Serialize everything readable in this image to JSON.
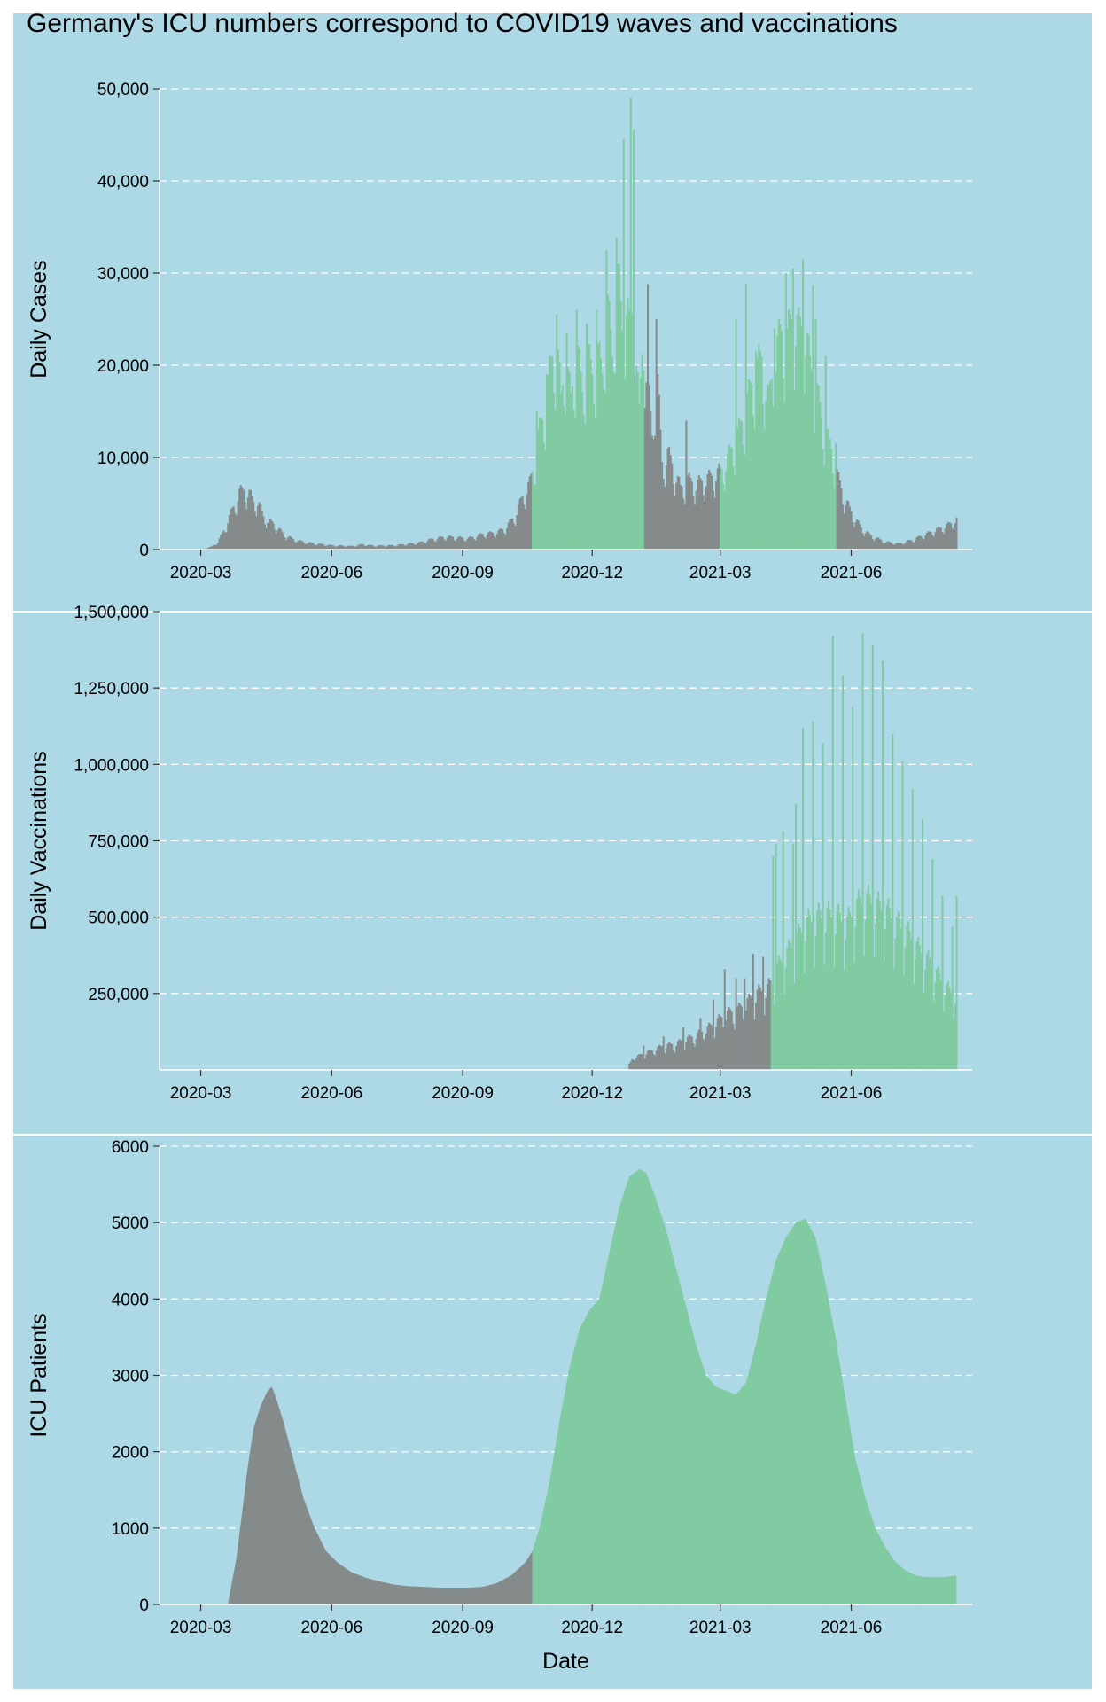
{
  "title": "Germany's ICU numbers correspond to COVID19 waves and vaccinations",
  "colors": {
    "background": "#add8e6",
    "gray_bar": "#858b8b",
    "green_bar": "#80cba1",
    "grid": "#ffffff",
    "axis": "#ffffff"
  },
  "chart_data": [
    {
      "type": "bar",
      "name": "cases",
      "ylabel": "Daily Cases",
      "xlabel": "",
      "xlim": [
        "2020-02-01",
        "2021-08-25"
      ],
      "ylim": [
        0,
        50000
      ],
      "y_ticks": [
        0,
        10000,
        20000,
        30000,
        40000,
        50000
      ],
      "y_tick_labels": [
        "0",
        "10,000",
        "20,000",
        "30,000",
        "40,000",
        "50,000"
      ],
      "x_ticks": [
        "2020-03-01",
        "2020-06-01",
        "2020-09-01",
        "2020-12-01",
        "2021-03-01",
        "2021-06-01"
      ],
      "x_tick_labels": [
        "2020-03",
        "2020-06",
        "2020-09",
        "2020-12",
        "2021-03",
        "2021-06"
      ],
      "grid": "horizontal dashed",
      "highlight_periods": [
        [
          "2020-10-20",
          "2021-01-06"
        ],
        [
          "2021-03-01",
          "2021-05-21"
        ]
      ],
      "points": [
        [
          "2020-02-27",
          10
        ],
        [
          "2020-03-03",
          100
        ],
        [
          "2020-03-08",
          300
        ],
        [
          "2020-03-13",
          900
        ],
        [
          "2020-03-18",
          2500
        ],
        [
          "2020-03-22",
          4200
        ],
        [
          "2020-03-25",
          5300
        ],
        [
          "2020-03-28",
          6600
        ],
        [
          "2020-04-01",
          6900
        ],
        [
          "2020-04-04",
          6500
        ],
        [
          "2020-04-07",
          5500
        ],
        [
          "2020-04-10",
          5600
        ],
        [
          "2020-04-14",
          3800
        ],
        [
          "2020-04-18",
          3300
        ],
        [
          "2020-04-22",
          2900
        ],
        [
          "2020-04-28",
          1800
        ],
        [
          "2020-05-05",
          1200
        ],
        [
          "2020-05-12",
          900
        ],
        [
          "2020-05-20",
          700
        ],
        [
          "2020-06-01",
          500
        ],
        [
          "2020-06-15",
          400
        ],
        [
          "2020-06-22",
          600
        ],
        [
          "2020-07-01",
          450
        ],
        [
          "2020-07-15",
          500
        ],
        [
          "2020-08-01",
          800
        ],
        [
          "2020-08-10",
          1200
        ],
        [
          "2020-08-20",
          1500
        ],
        [
          "2020-08-28",
          1400
        ],
        [
          "2020-09-05",
          1300
        ],
        [
          "2020-09-15",
          1800
        ],
        [
          "2020-09-25",
          2000
        ],
        [
          "2020-10-01",
          2500
        ],
        [
          "2020-10-08",
          4000
        ],
        [
          "2020-10-14",
          6500
        ],
        [
          "2020-10-18",
          7600
        ],
        [
          "2020-10-21",
          9500
        ],
        [
          "2020-10-24",
          13000
        ],
        [
          "2020-10-28",
          15500
        ],
        [
          "2020-10-31",
          19000
        ],
        [
          "2020-11-03",
          22000
        ],
        [
          "2020-11-06",
          24000
        ],
        [
          "2020-11-09",
          17000
        ],
        [
          "2020-11-12",
          22500
        ],
        [
          "2020-11-16",
          17000
        ],
        [
          "2020-11-20",
          23500
        ],
        [
          "2020-11-24",
          18000
        ],
        [
          "2020-11-27",
          22500
        ],
        [
          "2020-12-01",
          20000
        ],
        [
          "2020-12-04",
          23000
        ],
        [
          "2020-12-08",
          20000
        ],
        [
          "2020-12-11",
          29500
        ],
        [
          "2020-12-15",
          22000
        ],
        [
          "2020-12-18",
          33000
        ],
        [
          "2020-12-22",
          25000
        ],
        [
          "2020-12-25",
          30000
        ],
        [
          "2020-12-28",
          22000
        ],
        [
          "2020-12-30",
          32000
        ],
        [
          "2021-01-03",
          15000
        ],
        [
          "2021-01-06",
          26000
        ],
        [
          "2021-01-09",
          19000
        ],
        [
          "2021-01-12",
          13000
        ],
        [
          "2021-01-15",
          22000
        ],
        [
          "2021-01-19",
          10000
        ],
        [
          "2021-01-23",
          11000
        ],
        [
          "2021-01-27",
          9500
        ],
        [
          "2021-02-01",
          7000
        ],
        [
          "2021-02-06",
          8000
        ],
        [
          "2021-02-12",
          7500
        ],
        [
          "2021-02-18",
          8000
        ],
        [
          "2021-02-24",
          8500
        ],
        [
          "2021-03-01",
          9000
        ],
        [
          "2021-03-05",
          10000
        ],
        [
          "2021-03-10",
          12000
        ],
        [
          "2021-03-15",
          14000
        ],
        [
          "2021-03-20",
          17000
        ],
        [
          "2021-03-25",
          20000
        ],
        [
          "2021-03-30",
          22000
        ],
        [
          "2021-04-04",
          17000
        ],
        [
          "2021-04-08",
          22000
        ],
        [
          "2021-04-13",
          25000
        ],
        [
          "2021-04-17",
          24000
        ],
        [
          "2021-04-21",
          27000
        ],
        [
          "2021-04-25",
          25000
        ],
        [
          "2021-04-29",
          26000
        ],
        [
          "2021-05-03",
          21000
        ],
        [
          "2021-05-07",
          19000
        ],
        [
          "2021-05-11",
          15000
        ],
        [
          "2021-05-15",
          13000
        ],
        [
          "2021-05-19",
          11000
        ],
        [
          "2021-05-23",
          8000
        ],
        [
          "2021-05-27",
          6000
        ],
        [
          "2021-06-02",
          4000
        ],
        [
          "2021-06-08",
          2500
        ],
        [
          "2021-06-15",
          1600
        ],
        [
          "2021-06-25",
          900
        ],
        [
          "2021-07-05",
          700
        ],
        [
          "2021-07-15",
          1200
        ],
        [
          "2021-07-25",
          1900
        ],
        [
          "2021-08-03",
          2500
        ],
        [
          "2021-08-10",
          3000
        ],
        [
          "2021-08-14",
          3500
        ]
      ],
      "peaks": [
        [
          "2020-10-23",
          15000
        ],
        [
          "2020-10-30",
          19000
        ],
        [
          "2020-11-06",
          25500
        ],
        [
          "2020-11-13",
          23500
        ],
        [
          "2020-11-20",
          26000
        ],
        [
          "2020-11-27",
          24500
        ],
        [
          "2020-12-04",
          26000
        ],
        [
          "2020-12-11",
          32500
        ],
        [
          "2020-12-18",
          33800
        ],
        [
          "2020-12-20",
          31000
        ],
        [
          "2020-12-23",
          44500
        ],
        [
          "2020-12-28",
          49000
        ],
        [
          "2020-12-30",
          45500
        ],
        [
          "2021-01-09",
          28800
        ],
        [
          "2021-01-15",
          25000
        ],
        [
          "2021-02-05",
          14000
        ],
        [
          "2021-03-12",
          25000
        ],
        [
          "2021-03-19",
          28800
        ],
        [
          "2021-03-26",
          21500
        ],
        [
          "2021-04-08",
          24000
        ],
        [
          "2021-04-16",
          30000
        ],
        [
          "2021-04-21",
          30500
        ],
        [
          "2021-04-28",
          31500
        ],
        [
          "2021-05-05",
          28700
        ],
        [
          "2021-05-07",
          25000
        ],
        [
          "2021-05-14",
          21000
        ],
        [
          "2021-05-21",
          11500
        ]
      ]
    },
    {
      "type": "bar",
      "name": "vaccinations",
      "ylabel": "Daily Vaccinations",
      "xlabel": "",
      "xlim": [
        "2020-02-01",
        "2021-08-25"
      ],
      "ylim": [
        0,
        1500000
      ],
      "y_ticks": [
        250000,
        500000,
        750000,
        1000000,
        1250000,
        1500000
      ],
      "y_tick_labels": [
        "250,000",
        "500,000",
        "750,000",
        "1,000,000",
        "1,250,000",
        "1,500,000"
      ],
      "x_ticks": [
        "2020-03-01",
        "2020-06-01",
        "2020-09-01",
        "2020-12-01",
        "2021-03-01",
        "2021-06-01"
      ],
      "x_tick_labels": [
        "2020-03",
        "2020-06",
        "2020-09",
        "2020-12",
        "2021-03",
        "2021-06"
      ],
      "grid": "horizontal dashed",
      "highlight_periods": [
        [
          "2021-04-06",
          "2021-08-15"
        ]
      ],
      "points": [
        [
          "2020-12-27",
          20000
        ],
        [
          "2020-12-30",
          45000
        ],
        [
          "2021-01-03",
          50000
        ],
        [
          "2021-01-08",
          60000
        ],
        [
          "2021-01-13",
          70000
        ],
        [
          "2021-01-18",
          80000
        ],
        [
          "2021-01-23",
          85000
        ],
        [
          "2021-01-28",
          90000
        ],
        [
          "2021-02-02",
          100000
        ],
        [
          "2021-02-07",
          110000
        ],
        [
          "2021-02-12",
          120000
        ],
        [
          "2021-02-17",
          135000
        ],
        [
          "2021-02-22",
          150000
        ],
        [
          "2021-02-27",
          170000
        ],
        [
          "2021-03-04",
          190000
        ],
        [
          "2021-03-09",
          200000
        ],
        [
          "2021-03-14",
          210000
        ],
        [
          "2021-03-19",
          230000
        ],
        [
          "2021-03-24",
          250000
        ],
        [
          "2021-03-29",
          270000
        ],
        [
          "2021-04-03",
          280000
        ],
        [
          "2021-04-06",
          300000
        ],
        [
          "2021-04-10",
          350000
        ],
        [
          "2021-04-17",
          400000
        ],
        [
          "2021-04-24",
          450000
        ],
        [
          "2021-05-01",
          500000
        ],
        [
          "2021-05-08",
          520000
        ],
        [
          "2021-05-15",
          530000
        ],
        [
          "2021-05-22",
          520000
        ],
        [
          "2021-05-29",
          500000
        ],
        [
          "2021-06-05",
          560000
        ],
        [
          "2021-06-12",
          580000
        ],
        [
          "2021-06-19",
          560000
        ],
        [
          "2021-06-26",
          540000
        ],
        [
          "2021-07-03",
          500000
        ],
        [
          "2021-07-10",
          470000
        ],
        [
          "2021-07-17",
          420000
        ],
        [
          "2021-07-24",
          380000
        ],
        [
          "2021-07-31",
          330000
        ],
        [
          "2021-08-07",
          280000
        ],
        [
          "2021-08-14",
          250000
        ]
      ],
      "peaks": [
        [
          "2021-01-06",
          80000
        ],
        [
          "2021-01-20",
          110000
        ],
        [
          "2021-02-03",
          140000
        ],
        [
          "2021-02-15",
          170000
        ],
        [
          "2021-02-24",
          230000
        ],
        [
          "2021-03-04",
          330000
        ],
        [
          "2021-03-12",
          300000
        ],
        [
          "2021-03-18",
          300000
        ],
        [
          "2021-03-24",
          380000
        ],
        [
          "2021-03-31",
          370000
        ],
        [
          "2021-04-07",
          700000
        ],
        [
          "2021-04-09",
          740000
        ],
        [
          "2021-04-14",
          780000
        ],
        [
          "2021-04-21",
          740000
        ],
        [
          "2021-04-23",
          870000
        ],
        [
          "2021-04-28",
          1120000
        ],
        [
          "2021-05-05",
          1140000
        ],
        [
          "2021-05-12",
          1070000
        ],
        [
          "2021-05-19",
          1420000
        ],
        [
          "2021-05-26",
          1290000
        ],
        [
          "2021-06-02",
          1190000
        ],
        [
          "2021-06-09",
          1430000
        ],
        [
          "2021-06-16",
          1390000
        ],
        [
          "2021-06-23",
          1340000
        ],
        [
          "2021-06-30",
          1100000
        ],
        [
          "2021-07-07",
          1010000
        ],
        [
          "2021-07-14",
          920000
        ],
        [
          "2021-07-21",
          820000
        ],
        [
          "2021-07-28",
          690000
        ],
        [
          "2021-08-04",
          570000
        ],
        [
          "2021-08-11",
          470000
        ],
        [
          "2021-08-14",
          570000
        ]
      ]
    },
    {
      "type": "area",
      "name": "icu",
      "ylabel": "ICU Patients",
      "xlabel": "Date",
      "xlim": [
        "2020-02-01",
        "2021-08-25"
      ],
      "ylim": [
        0,
        6000
      ],
      "y_ticks": [
        0,
        1000,
        2000,
        3000,
        4000,
        5000,
        6000
      ],
      "y_tick_labels": [
        "0",
        "1000",
        "2000",
        "3000",
        "4000",
        "5000",
        "6000"
      ],
      "x_ticks": [
        "2020-03-01",
        "2020-06-01",
        "2020-09-01",
        "2020-12-01",
        "2021-03-01",
        "2021-06-01"
      ],
      "x_tick_labels": [
        "2020-03",
        "2020-06",
        "2020-09",
        "2020-12",
        "2021-03",
        "2021-06"
      ],
      "grid": "horizontal dashed",
      "highlight_from": "2020-10-20",
      "points": [
        [
          "2020-03-20",
          0
        ],
        [
          "2020-03-22",
          200
        ],
        [
          "2020-03-26",
          600
        ],
        [
          "2020-03-30",
          1200
        ],
        [
          "2020-04-03",
          1800
        ],
        [
          "2020-04-07",
          2300
        ],
        [
          "2020-04-12",
          2600
        ],
        [
          "2020-04-17",
          2800
        ],
        [
          "2020-04-20",
          2850
        ],
        [
          "2020-04-23",
          2700
        ],
        [
          "2020-04-28",
          2400
        ],
        [
          "2020-05-05",
          1900
        ],
        [
          "2020-05-12",
          1400
        ],
        [
          "2020-05-20",
          1000
        ],
        [
          "2020-05-28",
          700
        ],
        [
          "2020-06-05",
          550
        ],
        [
          "2020-06-15",
          420
        ],
        [
          "2020-06-25",
          350
        ],
        [
          "2020-07-05",
          300
        ],
        [
          "2020-07-15",
          260
        ],
        [
          "2020-07-25",
          240
        ],
        [
          "2020-08-05",
          230
        ],
        [
          "2020-08-15",
          220
        ],
        [
          "2020-08-25",
          220
        ],
        [
          "2020-09-05",
          220
        ],
        [
          "2020-09-15",
          230
        ],
        [
          "2020-09-25",
          280
        ],
        [
          "2020-10-05",
          380
        ],
        [
          "2020-10-15",
          550
        ],
        [
          "2020-10-20",
          700
        ],
        [
          "2020-10-25",
          1000
        ],
        [
          "2020-11-01",
          1600
        ],
        [
          "2020-11-08",
          2400
        ],
        [
          "2020-11-15",
          3100
        ],
        [
          "2020-11-22",
          3600
        ],
        [
          "2020-11-29",
          3850
        ],
        [
          "2020-12-06",
          4000
        ],
        [
          "2020-12-13",
          4600
        ],
        [
          "2020-12-20",
          5200
        ],
        [
          "2020-12-27",
          5600
        ],
        [
          "2021-01-03",
          5700
        ],
        [
          "2021-01-08",
          5650
        ],
        [
          "2021-01-15",
          5300
        ],
        [
          "2021-01-22",
          4900
        ],
        [
          "2021-01-29",
          4400
        ],
        [
          "2021-02-05",
          3900
        ],
        [
          "2021-02-12",
          3400
        ],
        [
          "2021-02-19",
          3000
        ],
        [
          "2021-02-26",
          2850
        ],
        [
          "2021-03-05",
          2800
        ],
        [
          "2021-03-12",
          2750
        ],
        [
          "2021-03-19",
          2900
        ],
        [
          "2021-03-26",
          3400
        ],
        [
          "2021-04-02",
          4000
        ],
        [
          "2021-04-09",
          4500
        ],
        [
          "2021-04-16",
          4800
        ],
        [
          "2021-04-23",
          5000
        ],
        [
          "2021-04-30",
          5050
        ],
        [
          "2021-05-07",
          4800
        ],
        [
          "2021-05-14",
          4200
        ],
        [
          "2021-05-21",
          3500
        ],
        [
          "2021-05-28",
          2700
        ],
        [
          "2021-06-04",
          1900
        ],
        [
          "2021-06-11",
          1400
        ],
        [
          "2021-06-18",
          1000
        ],
        [
          "2021-06-25",
          750
        ],
        [
          "2021-07-02",
          560
        ],
        [
          "2021-07-09",
          450
        ],
        [
          "2021-07-16",
          380
        ],
        [
          "2021-07-23",
          360
        ],
        [
          "2021-07-30",
          360
        ],
        [
          "2021-08-06",
          360
        ],
        [
          "2021-08-14",
          380
        ]
      ]
    }
  ]
}
